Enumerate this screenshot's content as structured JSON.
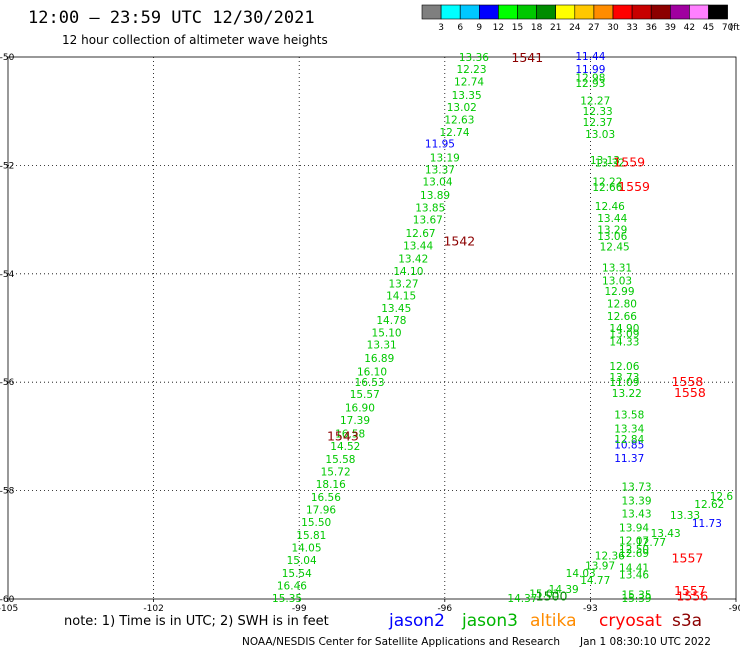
{
  "header": {
    "title": "12:00 – 23:59 UTC 12/30/2021",
    "subtitle": "12 hour collection of altimeter wave heights"
  },
  "scale": {
    "labels": [
      "3",
      "6",
      "9",
      "12",
      "15",
      "18",
      "21",
      "24",
      "27",
      "30",
      "33",
      "36",
      "39",
      "42",
      "45",
      "70",
      "(ft)"
    ],
    "colors": [
      "#7f7f7f",
      "#00ffff",
      "#00c8ff",
      "#0000ff",
      "#00ff00",
      "#00c800",
      "#008c00",
      "#ffff00",
      "#ffc800",
      "#ff8c00",
      "#ff0000",
      "#c80000",
      "#8c0000",
      "#a000a0",
      "#ff80ff",
      "#000000"
    ]
  },
  "footer": {
    "note": "note:  1) Time is in UTC;  2) SWH is in feet",
    "credit": "NOAA/NESDIS Center for Satellite Applications and Research",
    "timestamp": "Jan  1 08:30:10 UTC 2022",
    "satellites": [
      {
        "name": "jason2",
        "color": "#0000ff"
      },
      {
        "name": "jason3",
        "color": "#00b400"
      },
      {
        "name": "altika",
        "color": "#ff8c00"
      },
      {
        "name": "cryosat",
        "color": "#ff0000"
      },
      {
        "name": "s3a",
        "color": "#8c0000"
      }
    ]
  },
  "chart_data": {
    "type": "scatter",
    "title": "12:00 – 23:59 UTC 12/30/2021",
    "subtitle": "12 hour collection of altimeter wave heights",
    "xlim": [
      -105,
      -90
    ],
    "ylim": [
      -60,
      -50
    ],
    "x_ticks": [
      -105,
      -102,
      -99,
      -96,
      -93,
      -90
    ],
    "y_ticks": [
      -50,
      -52,
      -54,
      -56,
      -58,
      -60
    ],
    "grid": true,
    "color_scale": {
      "labels": [
        "3",
        "6",
        "9",
        "12",
        "15",
        "18",
        "21",
        "24",
        "27",
        "30",
        "33",
        "36",
        "39",
        "42",
        "45",
        "70"
      ],
      "unit": "(ft)"
    },
    "pass_times": [
      {
        "label": "1541",
        "x": -94.3,
        "y": -50.02,
        "color": "#8c0000"
      },
      {
        "label": "1542",
        "x": -95.7,
        "y": -53.4,
        "color": "#8c0000"
      },
      {
        "label": "1543",
        "x": -98.1,
        "y": -57.0,
        "color": "#8c0000"
      },
      {
        "label": "1559",
        "x": -92.2,
        "y": -51.95,
        "color": "#ff0000"
      },
      {
        "label": "1559",
        "x": -92.1,
        "y": -52.4,
        "color": "#ff0000"
      },
      {
        "label": "1558",
        "x": -91.0,
        "y": -56.0,
        "color": "#ff0000"
      },
      {
        "label": "1558",
        "x": -90.95,
        "y": -56.2,
        "color": "#ff0000"
      },
      {
        "label": "1557",
        "x": -91.0,
        "y": -59.25,
        "color": "#ff0000"
      },
      {
        "label": "1557",
        "x": -90.95,
        "y": -59.85,
        "color": "#ff0000"
      },
      {
        "label": "1556",
        "x": -90.9,
        "y": -59.95,
        "color": "#ff0000"
      },
      {
        "label": "1500",
        "x": -93.8,
        "y": -59.95,
        "color": "#008c00"
      }
    ],
    "series": [
      {
        "name": "jason2",
        "color": "#0000ff",
        "points": [
          {
            "x": -93.0,
            "y": -49.98,
            "v": "11.44"
          },
          {
            "x": -93.0,
            "y": -50.22,
            "v": "11.99"
          },
          {
            "x": -96.1,
            "y": -51.6,
            "v": "11.95"
          },
          {
            "x": -92.2,
            "y": -57.15,
            "v": "10.85"
          },
          {
            "x": -92.2,
            "y": -57.4,
            "v": "11.37"
          },
          {
            "x": -90.6,
            "y": -58.6,
            "v": "11.73"
          }
        ]
      },
      {
        "name": "jason3",
        "color": "#00c800",
        "points": [
          {
            "x": -95.4,
            "y": -50.0,
            "v": "13.36"
          },
          {
            "x": -95.45,
            "y": -50.22,
            "v": "12.23"
          },
          {
            "x": -95.5,
            "y": -50.45,
            "v": "12.74"
          },
          {
            "x": -95.55,
            "y": -50.7,
            "v": "13.35"
          },
          {
            "x": -95.65,
            "y": -50.92,
            "v": "13.02"
          },
          {
            "x": -95.7,
            "y": -51.15,
            "v": "12.63"
          },
          {
            "x": -95.8,
            "y": -51.38,
            "v": "12.74"
          },
          {
            "x": -96.0,
            "y": -51.85,
            "v": "13.19"
          },
          {
            "x": -96.1,
            "y": -52.08,
            "v": "13.37"
          },
          {
            "x": -96.15,
            "y": -52.3,
            "v": "13.04"
          },
          {
            "x": -96.2,
            "y": -52.55,
            "v": "13.89"
          },
          {
            "x": -96.3,
            "y": -52.78,
            "v": "13.85"
          },
          {
            "x": -96.35,
            "y": -53.0,
            "v": "13.67"
          },
          {
            "x": -96.5,
            "y": -53.25,
            "v": "12.67"
          },
          {
            "x": -96.55,
            "y": -53.48,
            "v": "13.44"
          },
          {
            "x": -96.65,
            "y": -53.72,
            "v": "13.42"
          },
          {
            "x": -96.75,
            "y": -53.95,
            "v": "14.10"
          },
          {
            "x": -96.85,
            "y": -54.18,
            "v": "13.27"
          },
          {
            "x": -96.9,
            "y": -54.4,
            "v": "14.15"
          },
          {
            "x": -97.0,
            "y": -54.63,
            "v": "13.45"
          },
          {
            "x": -97.1,
            "y": -54.85,
            "v": "14.78"
          },
          {
            "x": -97.2,
            "y": -55.08,
            "v": "15.10"
          },
          {
            "x": -97.3,
            "y": -55.3,
            "v": "13.31"
          },
          {
            "x": -97.35,
            "y": -55.55,
            "v": "16.89"
          },
          {
            "x": -97.5,
            "y": -55.8,
            "v": "16.10"
          },
          {
            "x": -97.55,
            "y": -56.0,
            "v": "16.53"
          },
          {
            "x": -97.65,
            "y": -56.22,
            "v": "15.57"
          },
          {
            "x": -97.75,
            "y": -56.47,
            "v": "16.90"
          },
          {
            "x": -97.85,
            "y": -56.7,
            "v": "17.39"
          },
          {
            "x": -97.95,
            "y": -56.95,
            "v": "16.58"
          },
          {
            "x": -98.05,
            "y": -57.18,
            "v": "14.52"
          },
          {
            "x": -98.15,
            "y": -57.42,
            "v": "15.58"
          },
          {
            "x": -98.25,
            "y": -57.65,
            "v": "15.72"
          },
          {
            "x": -98.35,
            "y": -57.88,
            "v": "18.16"
          },
          {
            "x": -98.45,
            "y": -58.12,
            "v": "16.56"
          },
          {
            "x": -98.55,
            "y": -58.35,
            "v": "17.96"
          },
          {
            "x": -98.65,
            "y": -58.58,
            "v": "15.50"
          },
          {
            "x": -98.75,
            "y": -58.82,
            "v": "15.81"
          },
          {
            "x": -98.85,
            "y": -59.05,
            "v": "14.05"
          },
          {
            "x": -98.95,
            "y": -59.28,
            "v": "15.04"
          },
          {
            "x": -99.05,
            "y": -59.52,
            "v": "15.54"
          },
          {
            "x": -99.15,
            "y": -59.75,
            "v": "16.46"
          },
          {
            "x": -99.25,
            "y": -59.98,
            "v": "15.35"
          },
          {
            "x": -93.0,
            "y": -50.38,
            "v": "12.98"
          },
          {
            "x": -93.0,
            "y": -50.48,
            "v": "12.93"
          },
          {
            "x": -92.9,
            "y": -50.8,
            "v": "12.27"
          },
          {
            "x": -92.85,
            "y": -51.0,
            "v": "12.33"
          },
          {
            "x": -92.85,
            "y": -51.2,
            "v": "12.37"
          },
          {
            "x": -92.8,
            "y": -51.42,
            "v": "13.03"
          },
          {
            "x": -92.7,
            "y": -51.9,
            "v": "13.13"
          },
          {
            "x": -92.6,
            "y": -51.95,
            "v": "13.32"
          },
          {
            "x": -92.65,
            "y": -52.3,
            "v": "12.22"
          },
          {
            "x": -92.65,
            "y": -52.4,
            "v": "12.66"
          },
          {
            "x": -92.6,
            "y": -52.75,
            "v": "12.46"
          },
          {
            "x": -92.55,
            "y": -52.97,
            "v": "13.44"
          },
          {
            "x": -92.55,
            "y": -53.18,
            "v": "13.29"
          },
          {
            "x": -92.55,
            "y": -53.3,
            "v": "13.06"
          },
          {
            "x": -92.5,
            "y": -53.5,
            "v": "12.45"
          },
          {
            "x": -92.45,
            "y": -53.88,
            "v": "13.31"
          },
          {
            "x": -92.45,
            "y": -54.12,
            "v": "13.03"
          },
          {
            "x": -92.4,
            "y": -54.32,
            "v": "12.99"
          },
          {
            "x": -92.35,
            "y": -54.55,
            "v": "12.80"
          },
          {
            "x": -92.35,
            "y": -54.78,
            "v": "12.66"
          },
          {
            "x": -92.3,
            "y": -55.0,
            "v": "14.90"
          },
          {
            "x": -92.3,
            "y": -55.1,
            "v": "13.09"
          },
          {
            "x": -92.3,
            "y": -55.25,
            "v": "14.33"
          },
          {
            "x": -92.3,
            "y": -55.7,
            "v": "12.06"
          },
          {
            "x": -92.3,
            "y": -55.9,
            "v": "13.73"
          },
          {
            "x": -92.3,
            "y": -56.0,
            "v": "11.09"
          },
          {
            "x": -92.25,
            "y": -56.2,
            "v": "13.22"
          },
          {
            "x": -92.2,
            "y": -56.6,
            "v": "13.58"
          },
          {
            "x": -92.2,
            "y": -56.85,
            "v": "13.34"
          },
          {
            "x": -92.2,
            "y": -57.05,
            "v": "12.84"
          },
          {
            "x": -92.05,
            "y": -57.92,
            "v": "13.73"
          },
          {
            "x": -92.05,
            "y": -58.18,
            "v": "13.39"
          },
          {
            "x": -92.05,
            "y": -58.42,
            "v": "13.43"
          },
          {
            "x": -92.1,
            "y": -58.68,
            "v": "13.94"
          },
          {
            "x": -92.1,
            "y": -58.92,
            "v": "12.07"
          },
          {
            "x": -92.1,
            "y": -59.08,
            "v": "12.50"
          },
          {
            "x": -92.1,
            "y": -59.15,
            "v": "12.69"
          },
          {
            "x": -91.45,
            "y": -58.78,
            "v": "13.43"
          },
          {
            "x": -91.05,
            "y": -58.45,
            "v": "13.33"
          },
          {
            "x": -90.55,
            "y": -58.25,
            "v": "12.62"
          },
          {
            "x": -90.3,
            "y": -58.1,
            "v": "12.6"
          },
          {
            "x": -91.75,
            "y": -58.95,
            "v": "12.77"
          },
          {
            "x": -92.6,
            "y": -59.2,
            "v": "12.36"
          },
          {
            "x": -92.8,
            "y": -59.38,
            "v": "13.97"
          },
          {
            "x": -93.2,
            "y": -59.52,
            "v": "14.03"
          },
          {
            "x": -92.9,
            "y": -59.65,
            "v": "14.77"
          },
          {
            "x": -93.55,
            "y": -59.82,
            "v": "14.39"
          },
          {
            "x": -93.95,
            "y": -59.9,
            "v": "15.03"
          },
          {
            "x": -94.4,
            "y": -59.98,
            "v": "14.37"
          },
          {
            "x": -92.1,
            "y": -59.42,
            "v": "14.41"
          },
          {
            "x": -92.1,
            "y": -59.55,
            "v": "13.46"
          },
          {
            "x": -92.05,
            "y": -59.92,
            "v": "15.35"
          },
          {
            "x": -92.05,
            "y": -59.98,
            "v": "15.39"
          }
        ]
      }
    ]
  }
}
